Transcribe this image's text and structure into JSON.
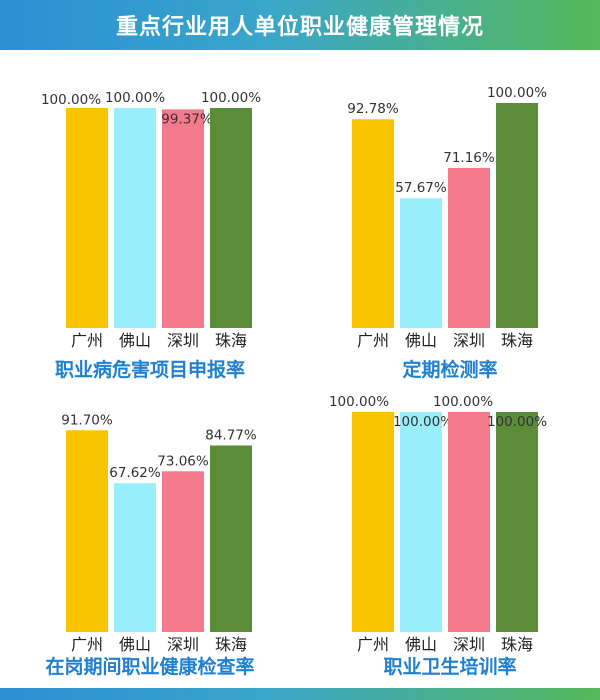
{
  "header": {
    "title": "重点行业用人单位职业健康管理情况"
  },
  "colors": {
    "guangzhou": "#f9c400",
    "foshan": "#99eefb",
    "shenzhen": "#f47a8c",
    "zhuhai": "#5b8c3a"
  },
  "chart_data": [
    {
      "type": "bar",
      "title": "职业病危害项目申报率",
      "categories": [
        "广州",
        "佛山",
        "深圳",
        "珠海"
      ],
      "values": [
        100.0,
        100.0,
        99.37,
        100.0
      ],
      "labels": [
        "100.00%",
        "100.00%",
        "99.37%",
        "100.00%"
      ],
      "ylim": [
        0,
        100
      ]
    },
    {
      "type": "bar",
      "title": "定期检测率",
      "categories": [
        "广州",
        "佛山",
        "深圳",
        "珠海"
      ],
      "values": [
        92.78,
        57.67,
        71.16,
        100.0
      ],
      "labels": [
        "92.78%",
        "57.67%",
        "71.16%",
        "100.00%"
      ],
      "ylim": [
        0,
        100
      ]
    },
    {
      "type": "bar",
      "title": "在岗期间职业健康检查率",
      "categories": [
        "广州",
        "佛山",
        "深圳",
        "珠海"
      ],
      "values": [
        91.7,
        67.62,
        73.06,
        84.77
      ],
      "labels": [
        "91.70%",
        "67.62%",
        "73.06%",
        "84.77%"
      ],
      "ylim": [
        0,
        100
      ]
    },
    {
      "type": "bar",
      "title": "职业卫生培训率",
      "categories": [
        "广州",
        "佛山",
        "深圳",
        "珠海"
      ],
      "values": [
        100.0,
        100.0,
        100.0,
        100.0
      ],
      "labels": [
        "100.00%",
        "100.00%",
        "100.00%",
        "100.00%"
      ],
      "ylim": [
        0,
        100
      ]
    }
  ]
}
